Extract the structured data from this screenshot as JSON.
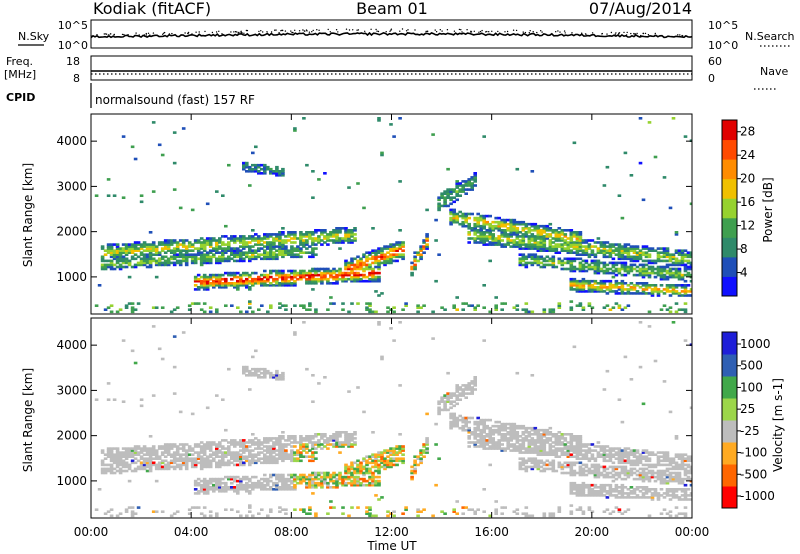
{
  "header": {
    "station": "Kodiak (fitACF)",
    "beam": "Beam 01",
    "date": "07/Aug/2014"
  },
  "noise_panel": {
    "left_label": "N.Sky",
    "right_label": "N.Search",
    "left_ticks": [
      "10^5",
      "10^0"
    ],
    "right_ticks": [
      "10^5",
      "10^0"
    ]
  },
  "freq_panel": {
    "left_label": "Freq.",
    "left_unit": "[MHz]",
    "right_label": "Nave",
    "left_ticks": [
      "18",
      "8"
    ],
    "right_ticks": [
      "60",
      "0"
    ]
  },
  "cpid_panel": {
    "label": "CPID",
    "value": "normalsound (fast) 157 RF"
  },
  "colors": {
    "power": [
      "#1010ff",
      "#1f4fb8",
      "#2f8a6a",
      "#3f9f4f",
      "#96d22f",
      "#f0c000",
      "#ff8c00",
      "#ff4a00",
      "#e00000"
    ],
    "velocity": [
      "#ff0000",
      "#ff6600",
      "#ffaa22",
      "#bdbdbd",
      "#9cd64a",
      "#41a84a",
      "#2f5fb3",
      "#1f1fd8"
    ]
  },
  "chart_data": [
    {
      "type": "heatmap",
      "title": "",
      "xlabel": "Time UT",
      "ylabel": "Slant Range [km]",
      "xlim": [
        "00:00",
        "24:00"
      ],
      "ylim": [
        180,
        4600
      ],
      "x_ticks": [
        "00:00",
        "04:00",
        "08:00",
        "12:00",
        "16:00",
        "20:00",
        "00:00"
      ],
      "y_ticks": [
        1000,
        2000,
        3000,
        4000
      ],
      "colorbar": {
        "label": "Power [dB]",
        "ticks": [
          4,
          8,
          12,
          16,
          20,
          24,
          28
        ],
        "range": [
          0,
          30
        ]
      }
    },
    {
      "type": "heatmap",
      "title": "",
      "xlabel": "Time UT",
      "ylabel": "Slant Range [km]",
      "xlim": [
        "00:00",
        "24:00"
      ],
      "ylim": [
        180,
        4600
      ],
      "x_ticks": [
        "00:00",
        "04:00",
        "08:00",
        "12:00",
        "16:00",
        "20:00",
        "00:00"
      ],
      "y_ticks": [
        1000,
        2000,
        3000,
        4000
      ],
      "colorbar": {
        "label": "Velocity [m s-1]",
        "ticks": [
          1000,
          500,
          100,
          25,
          -25,
          -100,
          -500,
          -1000
        ]
      }
    }
  ]
}
